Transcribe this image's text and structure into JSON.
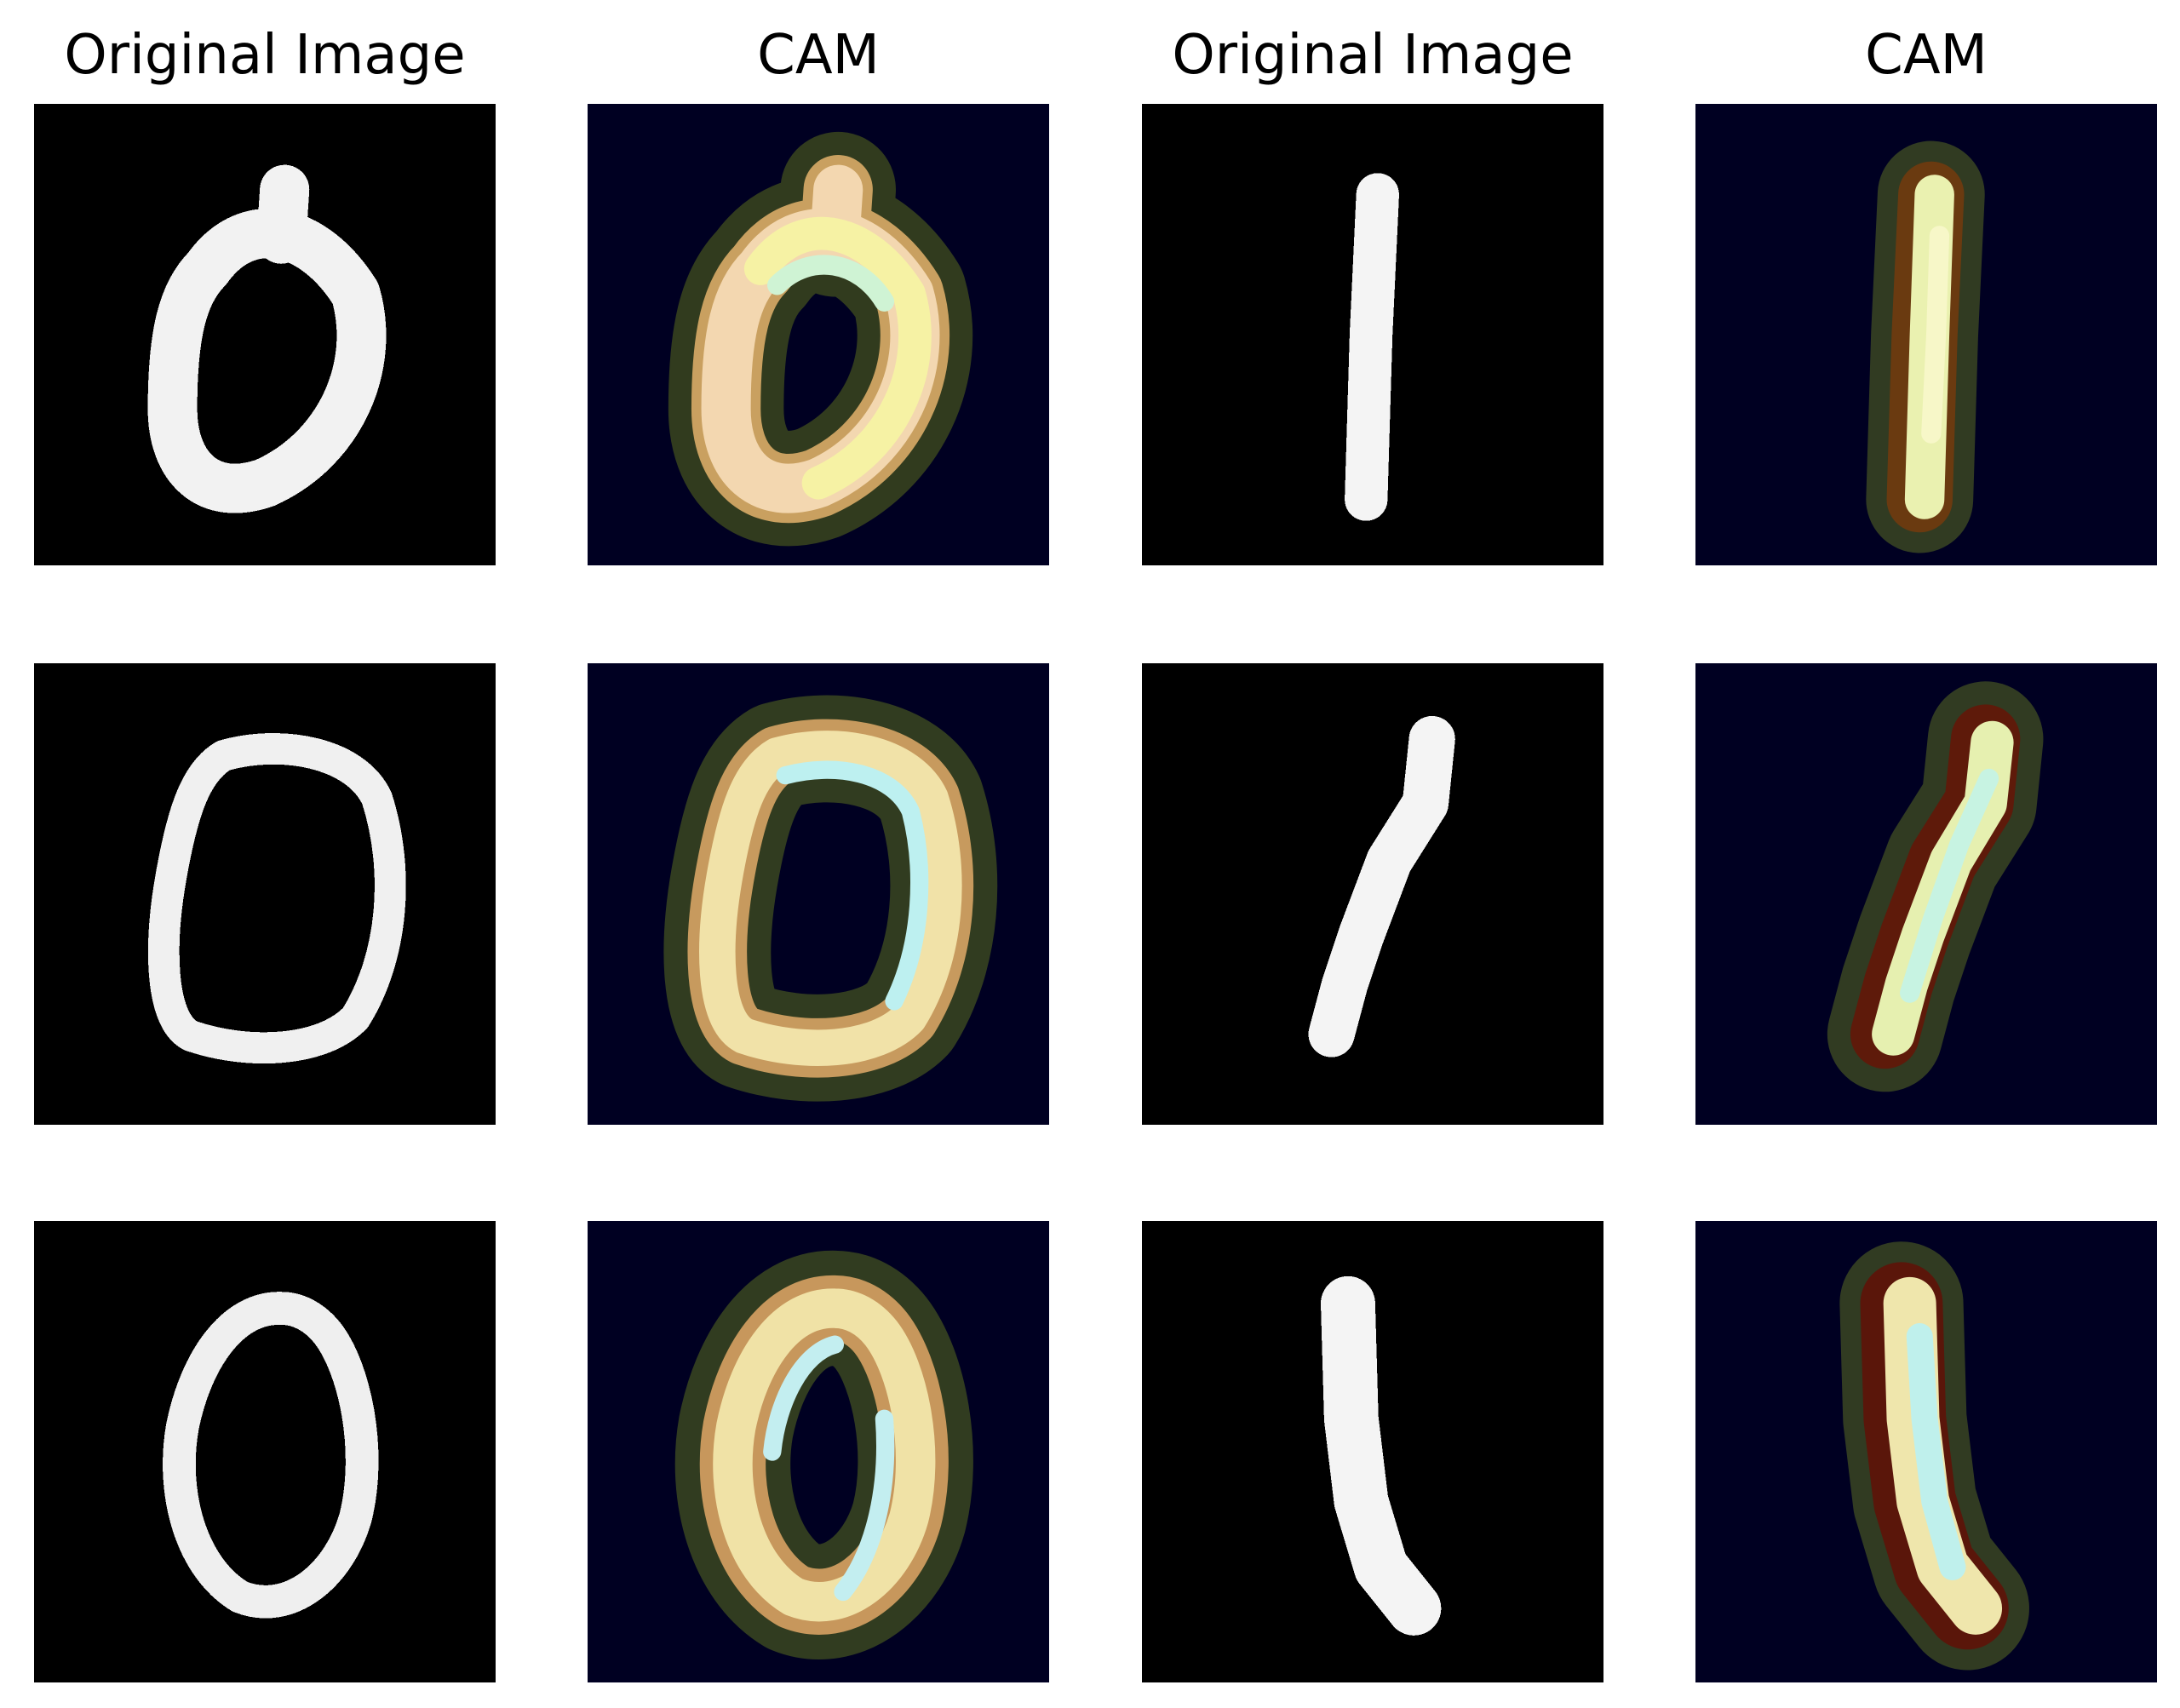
{
  "titles": [
    "Original Image",
    "CAM",
    "Original Image",
    "CAM"
  ],
  "colors": {
    "original_background": "#000000",
    "cam_background": "#000022",
    "digit_stroke": "#f4f4f4"
  }
}
